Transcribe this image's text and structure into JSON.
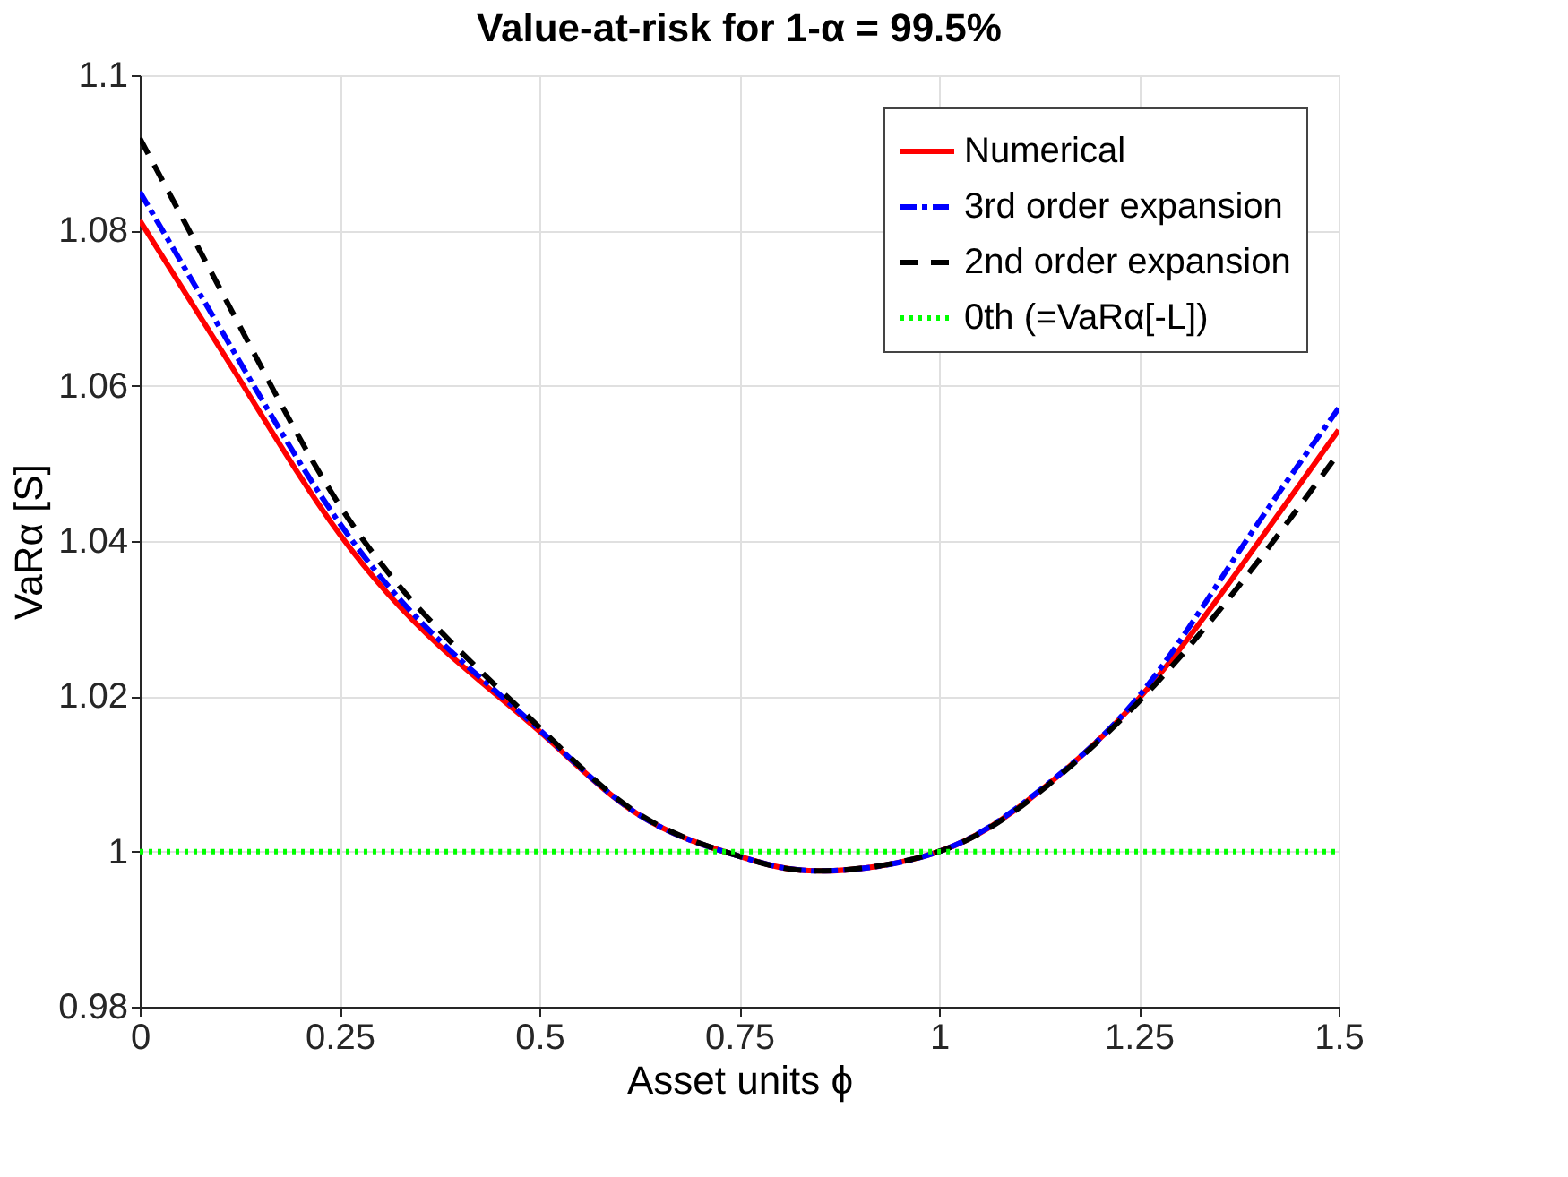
{
  "chart_data": {
    "type": "line",
    "title": "Value-at-risk for 1-α = 99.5%",
    "xlabel": "Asset units ϕ",
    "ylabel": "VaRα [S]",
    "x": [
      0,
      0.125,
      0.25,
      0.375,
      0.5,
      0.625,
      0.75,
      0.85,
      1,
      1.125,
      1.25,
      1.375,
      1.5
    ],
    "series": [
      {
        "name": "Numerical",
        "color": "#ff0000",
        "line_style": "solid",
        "values": [
          1.0813,
          1.0608,
          1.0409,
          1.0265,
          1.0155,
          1.0047,
          0.9994,
          0.9975,
          1.0,
          1.0077,
          1.0197,
          1.0363,
          1.0543
        ]
      },
      {
        "name": "3rd order expansion",
        "color": "#0000ff",
        "line_style": "dashdot",
        "values": [
          1.085,
          1.0631,
          1.0423,
          1.0272,
          1.0157,
          1.0047,
          0.9994,
          0.9975,
          1.0,
          1.0078,
          1.02,
          1.0386,
          1.0571
        ]
      },
      {
        "name": "2nd order expansion",
        "color": "#000000",
        "line_style": "dashed",
        "values": [
          1.0919,
          1.0677,
          1.0446,
          1.0285,
          1.016,
          1.0048,
          0.9994,
          0.9975,
          1.0,
          1.0076,
          1.0193,
          1.0342,
          1.0513
        ]
      },
      {
        "name": "0th (=VaRα[-L])",
        "color": "#00ff00",
        "line_style": "dotted",
        "values": [
          1,
          1,
          1,
          1,
          1,
          1,
          1,
          1,
          1,
          1,
          1,
          1,
          1
        ]
      }
    ],
    "xlim": [
      0,
      1.5
    ],
    "xticks": [
      0,
      0.25,
      0.5,
      0.75,
      1,
      1.25,
      1.5
    ],
    "ylim": [
      0.98,
      1.1
    ],
    "yticks": [
      0.98,
      1,
      1.02,
      1.04,
      1.06,
      1.08,
      1.1
    ],
    "grid": true,
    "legend": "top right",
    "marker": "none"
  }
}
